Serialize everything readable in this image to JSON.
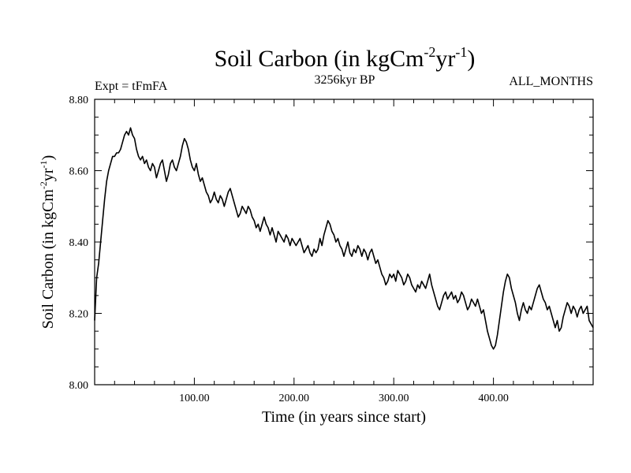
{
  "chart_data": {
    "type": "line",
    "title": {
      "main": "Soil Carbon (in kgCm",
      "sup1": "-2",
      "mid": "yr",
      "sup2": "-1",
      "end": ")"
    },
    "header": {
      "left": "Expt = tFmFA",
      "center": "3256kyr BP",
      "right": "ALL_MONTHS"
    },
    "xlabel": "Time (in years since start)",
    "ylabel": {
      "main": "Soil Carbon (in kgCm",
      "sup1": "-2",
      "mid": "yr",
      "sup2": "-1",
      "end": ")"
    },
    "xlim": [
      0,
      500
    ],
    "ylim": [
      8.0,
      8.8
    ],
    "xticks": [
      {
        "value": 100,
        "label": "100.00"
      },
      {
        "value": 200,
        "label": "200.00"
      },
      {
        "value": 300,
        "label": "300.00"
      },
      {
        "value": 400,
        "label": "400.00"
      }
    ],
    "yticks": [
      {
        "value": 8.0,
        "label": "8.00"
      },
      {
        "value": 8.2,
        "label": "8.20"
      },
      {
        "value": 8.4,
        "label": "8.40"
      },
      {
        "value": 8.6,
        "label": "8.60"
      },
      {
        "value": 8.8,
        "label": "8.80"
      }
    ],
    "series": [
      {
        "name": "Soil Carbon",
        "color": "#000000",
        "points": [
          [
            0,
            8.18
          ],
          [
            2,
            8.3
          ],
          [
            4,
            8.34
          ],
          [
            6,
            8.4
          ],
          [
            8,
            8.46
          ],
          [
            10,
            8.52
          ],
          [
            12,
            8.57
          ],
          [
            14,
            8.6
          ],
          [
            16,
            8.62
          ],
          [
            18,
            8.64
          ],
          [
            20,
            8.64
          ],
          [
            22,
            8.65
          ],
          [
            24,
            8.65
          ],
          [
            26,
            8.66
          ],
          [
            28,
            8.68
          ],
          [
            30,
            8.7
          ],
          [
            32,
            8.71
          ],
          [
            34,
            8.7
          ],
          [
            36,
            8.72
          ],
          [
            38,
            8.7
          ],
          [
            40,
            8.69
          ],
          [
            42,
            8.66
          ],
          [
            44,
            8.64
          ],
          [
            46,
            8.63
          ],
          [
            48,
            8.64
          ],
          [
            50,
            8.62
          ],
          [
            52,
            8.63
          ],
          [
            54,
            8.61
          ],
          [
            56,
            8.6
          ],
          [
            58,
            8.62
          ],
          [
            60,
            8.61
          ],
          [
            62,
            8.58
          ],
          [
            64,
            8.6
          ],
          [
            66,
            8.62
          ],
          [
            68,
            8.63
          ],
          [
            70,
            8.6
          ],
          [
            72,
            8.57
          ],
          [
            74,
            8.59
          ],
          [
            76,
            8.62
          ],
          [
            78,
            8.63
          ],
          [
            80,
            8.61
          ],
          [
            82,
            8.6
          ],
          [
            84,
            8.62
          ],
          [
            86,
            8.64
          ],
          [
            88,
            8.67
          ],
          [
            90,
            8.69
          ],
          [
            92,
            8.68
          ],
          [
            94,
            8.66
          ],
          [
            96,
            8.63
          ],
          [
            98,
            8.61
          ],
          [
            100,
            8.6
          ],
          [
            102,
            8.62
          ],
          [
            104,
            8.59
          ],
          [
            106,
            8.57
          ],
          [
            108,
            8.58
          ],
          [
            110,
            8.56
          ],
          [
            112,
            8.54
          ],
          [
            114,
            8.53
          ],
          [
            116,
            8.51
          ],
          [
            118,
            8.52
          ],
          [
            120,
            8.54
          ],
          [
            122,
            8.52
          ],
          [
            124,
            8.51
          ],
          [
            126,
            8.53
          ],
          [
            128,
            8.52
          ],
          [
            130,
            8.5
          ],
          [
            132,
            8.52
          ],
          [
            134,
            8.54
          ],
          [
            136,
            8.55
          ],
          [
            138,
            8.53
          ],
          [
            140,
            8.51
          ],
          [
            142,
            8.49
          ],
          [
            144,
            8.47
          ],
          [
            146,
            8.48
          ],
          [
            148,
            8.5
          ],
          [
            150,
            8.49
          ],
          [
            152,
            8.48
          ],
          [
            154,
            8.5
          ],
          [
            156,
            8.49
          ],
          [
            158,
            8.47
          ],
          [
            160,
            8.46
          ],
          [
            162,
            8.44
          ],
          [
            164,
            8.45
          ],
          [
            166,
            8.43
          ],
          [
            168,
            8.45
          ],
          [
            170,
            8.47
          ],
          [
            172,
            8.45
          ],
          [
            174,
            8.44
          ],
          [
            176,
            8.42
          ],
          [
            178,
            8.44
          ],
          [
            180,
            8.42
          ],
          [
            182,
            8.4
          ],
          [
            184,
            8.43
          ],
          [
            186,
            8.42
          ],
          [
            188,
            8.41
          ],
          [
            190,
            8.4
          ],
          [
            192,
            8.42
          ],
          [
            194,
            8.41
          ],
          [
            196,
            8.39
          ],
          [
            198,
            8.41
          ],
          [
            200,
            8.4
          ],
          [
            202,
            8.39
          ],
          [
            204,
            8.4
          ],
          [
            206,
            8.41
          ],
          [
            208,
            8.39
          ],
          [
            210,
            8.37
          ],
          [
            212,
            8.38
          ],
          [
            214,
            8.39
          ],
          [
            216,
            8.37
          ],
          [
            218,
            8.36
          ],
          [
            220,
            8.38
          ],
          [
            222,
            8.37
          ],
          [
            224,
            8.38
          ],
          [
            226,
            8.41
          ],
          [
            228,
            8.39
          ],
          [
            230,
            8.42
          ],
          [
            232,
            8.44
          ],
          [
            234,
            8.46
          ],
          [
            236,
            8.45
          ],
          [
            238,
            8.43
          ],
          [
            240,
            8.42
          ],
          [
            242,
            8.4
          ],
          [
            244,
            8.41
          ],
          [
            246,
            8.39
          ],
          [
            248,
            8.38
          ],
          [
            250,
            8.36
          ],
          [
            252,
            8.38
          ],
          [
            254,
            8.4
          ],
          [
            256,
            8.37
          ],
          [
            258,
            8.36
          ],
          [
            260,
            8.38
          ],
          [
            262,
            8.37
          ],
          [
            264,
            8.39
          ],
          [
            266,
            8.38
          ],
          [
            268,
            8.36
          ],
          [
            270,
            8.38
          ],
          [
            272,
            8.37
          ],
          [
            274,
            8.35
          ],
          [
            276,
            8.37
          ],
          [
            278,
            8.38
          ],
          [
            280,
            8.36
          ],
          [
            282,
            8.34
          ],
          [
            284,
            8.35
          ],
          [
            286,
            8.33
          ],
          [
            288,
            8.31
          ],
          [
            290,
            8.3
          ],
          [
            292,
            8.28
          ],
          [
            294,
            8.29
          ],
          [
            296,
            8.31
          ],
          [
            298,
            8.3
          ],
          [
            300,
            8.31
          ],
          [
            302,
            8.29
          ],
          [
            304,
            8.32
          ],
          [
            306,
            8.31
          ],
          [
            308,
            8.3
          ],
          [
            310,
            8.28
          ],
          [
            312,
            8.29
          ],
          [
            314,
            8.31
          ],
          [
            316,
            8.3
          ],
          [
            318,
            8.28
          ],
          [
            320,
            8.27
          ],
          [
            322,
            8.26
          ],
          [
            324,
            8.28
          ],
          [
            326,
            8.27
          ],
          [
            328,
            8.29
          ],
          [
            330,
            8.28
          ],
          [
            332,
            8.27
          ],
          [
            334,
            8.29
          ],
          [
            336,
            8.31
          ],
          [
            338,
            8.28
          ],
          [
            340,
            8.26
          ],
          [
            342,
            8.24
          ],
          [
            344,
            8.22
          ],
          [
            346,
            8.21
          ],
          [
            348,
            8.23
          ],
          [
            350,
            8.25
          ],
          [
            352,
            8.26
          ],
          [
            354,
            8.24
          ],
          [
            356,
            8.25
          ],
          [
            358,
            8.26
          ],
          [
            360,
            8.24
          ],
          [
            362,
            8.25
          ],
          [
            364,
            8.23
          ],
          [
            366,
            8.24
          ],
          [
            368,
            8.26
          ],
          [
            370,
            8.25
          ],
          [
            372,
            8.23
          ],
          [
            374,
            8.21
          ],
          [
            376,
            8.22
          ],
          [
            378,
            8.24
          ],
          [
            380,
            8.23
          ],
          [
            382,
            8.22
          ],
          [
            384,
            8.24
          ],
          [
            386,
            8.22
          ],
          [
            388,
            8.2
          ],
          [
            390,
            8.21
          ],
          [
            392,
            8.18
          ],
          [
            394,
            8.15
          ],
          [
            396,
            8.13
          ],
          [
            398,
            8.11
          ],
          [
            400,
            8.1
          ],
          [
            402,
            8.11
          ],
          [
            404,
            8.14
          ],
          [
            406,
            8.18
          ],
          [
            408,
            8.22
          ],
          [
            410,
            8.26
          ],
          [
            412,
            8.29
          ],
          [
            414,
            8.31
          ],
          [
            416,
            8.3
          ],
          [
            418,
            8.27
          ],
          [
            420,
            8.25
          ],
          [
            422,
            8.23
          ],
          [
            424,
            8.2
          ],
          [
            426,
            8.18
          ],
          [
            428,
            8.21
          ],
          [
            430,
            8.23
          ],
          [
            432,
            8.21
          ],
          [
            434,
            8.2
          ],
          [
            436,
            8.22
          ],
          [
            438,
            8.21
          ],
          [
            440,
            8.23
          ],
          [
            442,
            8.25
          ],
          [
            444,
            8.27
          ],
          [
            446,
            8.28
          ],
          [
            448,
            8.26
          ],
          [
            450,
            8.24
          ],
          [
            452,
            8.23
          ],
          [
            454,
            8.21
          ],
          [
            456,
            8.22
          ],
          [
            458,
            8.2
          ],
          [
            460,
            8.18
          ],
          [
            462,
            8.16
          ],
          [
            464,
            8.18
          ],
          [
            466,
            8.15
          ],
          [
            468,
            8.16
          ],
          [
            470,
            8.19
          ],
          [
            472,
            8.21
          ],
          [
            474,
            8.23
          ],
          [
            476,
            8.22
          ],
          [
            478,
            8.2
          ],
          [
            480,
            8.22
          ],
          [
            482,
            8.21
          ],
          [
            484,
            8.19
          ],
          [
            486,
            8.21
          ],
          [
            488,
            8.22
          ],
          [
            490,
            8.2
          ],
          [
            492,
            8.21
          ],
          [
            494,
            8.22
          ],
          [
            496,
            8.18
          ],
          [
            498,
            8.17
          ],
          [
            500,
            8.16
          ]
        ]
      }
    ]
  }
}
